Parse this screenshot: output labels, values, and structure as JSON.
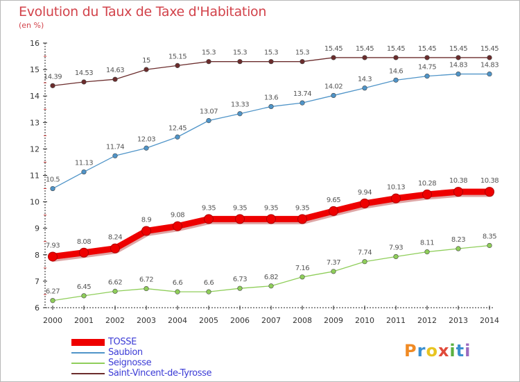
{
  "header": {
    "title": "Evolution du Taux de Taxe d'Habitation",
    "unit": "(en %)"
  },
  "chart_data": {
    "type": "line",
    "title": "Evolution du Taux de Taxe d'Habitation",
    "ylabel": "(en %)",
    "xlabel": "",
    "ylim": [
      6,
      16
    ],
    "yticks": [
      "6",
      "7",
      "8",
      "9",
      "10",
      "11",
      "12",
      "13",
      "14",
      "15",
      "16"
    ],
    "x": [
      "2000",
      "2001",
      "2002",
      "2003",
      "2004",
      "2005",
      "2006",
      "2007",
      "2008",
      "2009",
      "2010",
      "2011",
      "2012",
      "2013",
      "2014"
    ],
    "grid": false,
    "legend_position": "bottom-left",
    "series": [
      {
        "name": "TOSSE",
        "color": "#ee0000",
        "values": [
          7.93,
          8.08,
          8.24,
          8.9,
          9.08,
          9.35,
          9.35,
          9.35,
          9.35,
          9.65,
          9.94,
          10.13,
          10.28,
          10.38,
          10.38
        ],
        "labels": [
          "7.93",
          "8.08",
          "8.24",
          "8.9",
          "9.08",
          "9.35",
          "9.35",
          "9.35",
          "9.35",
          "9.65",
          "9.94",
          "10.13",
          "10.28",
          "10.38",
          "10.38"
        ]
      },
      {
        "name": "Saubion",
        "color": "#4f94c8",
        "values": [
          10.5,
          11.13,
          11.74,
          12.03,
          12.45,
          13.07,
          13.33,
          13.6,
          13.74,
          14.02,
          14.3,
          14.6,
          14.75,
          14.83,
          14.83
        ],
        "labels": [
          "10.5",
          "11.13",
          "11.74",
          "12.03",
          "12.45",
          "13.07",
          "13.33",
          "13.6",
          "13.74",
          "14.02",
          "14.3",
          "14.6",
          "14.75",
          "14.83",
          "14.83"
        ]
      },
      {
        "name": "Seignosse",
        "color": "#8fce5a",
        "values": [
          6.27,
          6.45,
          6.62,
          6.72,
          6.6,
          6.6,
          6.73,
          6.82,
          7.16,
          7.37,
          7.74,
          7.93,
          8.11,
          8.23,
          8.35
        ],
        "labels": [
          "6.27",
          "6.45",
          "6.62",
          "6.72",
          "6.6",
          "6.6",
          "6.73",
          "6.82",
          "7.16",
          "7.37",
          "7.74",
          "7.93",
          "8.11",
          "8.23",
          "8.35"
        ]
      },
      {
        "name": "Saint-Vincent-de-Tyrosse",
        "color": "#6b2c2c",
        "values": [
          14.39,
          14.53,
          14.63,
          15,
          15.15,
          15.3,
          15.3,
          15.3,
          15.3,
          15.45,
          15.45,
          15.45,
          15.45,
          15.45,
          15.45
        ],
        "labels": [
          "14.39",
          "14.53",
          "14.63",
          "15",
          "15.15",
          "15.3",
          "15.3",
          "15.3",
          "15.3",
          "15.45",
          "15.45",
          "15.45",
          "15.45",
          "15.45",
          "15.45"
        ]
      }
    ]
  },
  "branding": {
    "logo_text": "Proxiti",
    "logo_colors": [
      "#f08a24",
      "#3a8fd0",
      "#e8c420",
      "#e04a3a",
      "#5ab040",
      "#3a8fd0",
      "#9a6ac0"
    ]
  }
}
